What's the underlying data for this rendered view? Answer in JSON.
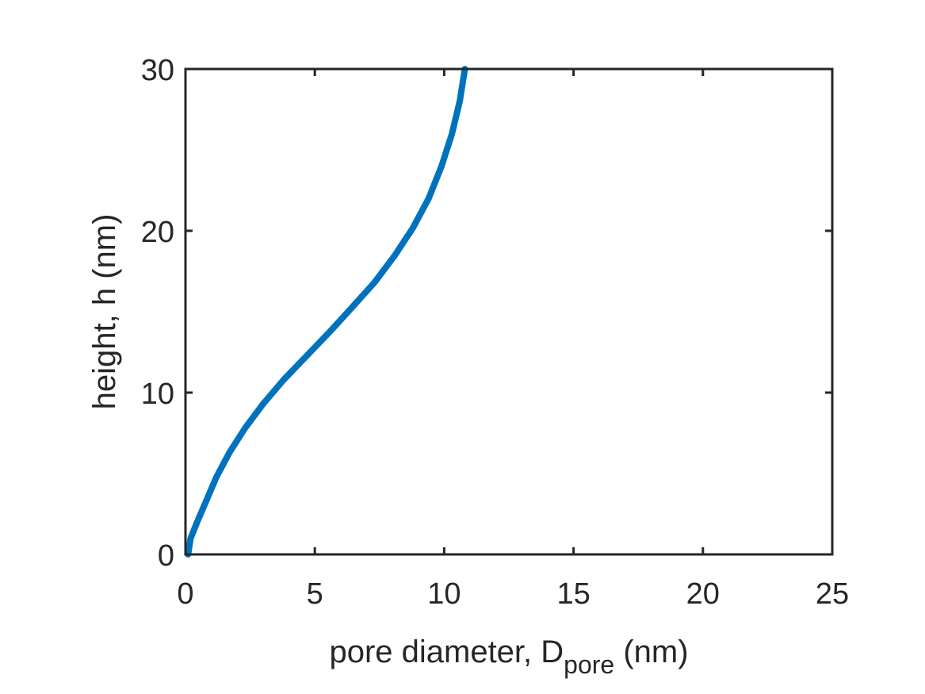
{
  "chart_data": {
    "type": "line",
    "xlabel": {
      "main": "pore diameter, D",
      "subscript": "pore",
      "suffix": " (nm)"
    },
    "ylabel": "height, h (nm)",
    "xlim": [
      0,
      25
    ],
    "ylim": [
      0,
      30
    ],
    "xticks": [
      0,
      5,
      10,
      15,
      20,
      25
    ],
    "yticks": [
      0,
      10,
      20,
      30
    ],
    "grid": false,
    "colors": {
      "series": "#0072BD",
      "axis": "#262626"
    },
    "series": [
      {
        "x": [
          0.1,
          0.2,
          0.45,
          0.8,
          1.2,
          1.7,
          2.3,
          3.0,
          3.8,
          4.7,
          5.6,
          6.4,
          7.3,
          8.1,
          8.8,
          9.4,
          9.9,
          10.3,
          10.6,
          10.8
        ],
        "y": [
          0.0,
          1.0,
          2.0,
          3.3,
          4.8,
          6.3,
          7.8,
          9.3,
          10.8,
          12.3,
          13.8,
          15.2,
          16.8,
          18.5,
          20.2,
          22.0,
          24.0,
          26.0,
          28.0,
          30.0
        ]
      }
    ]
  }
}
